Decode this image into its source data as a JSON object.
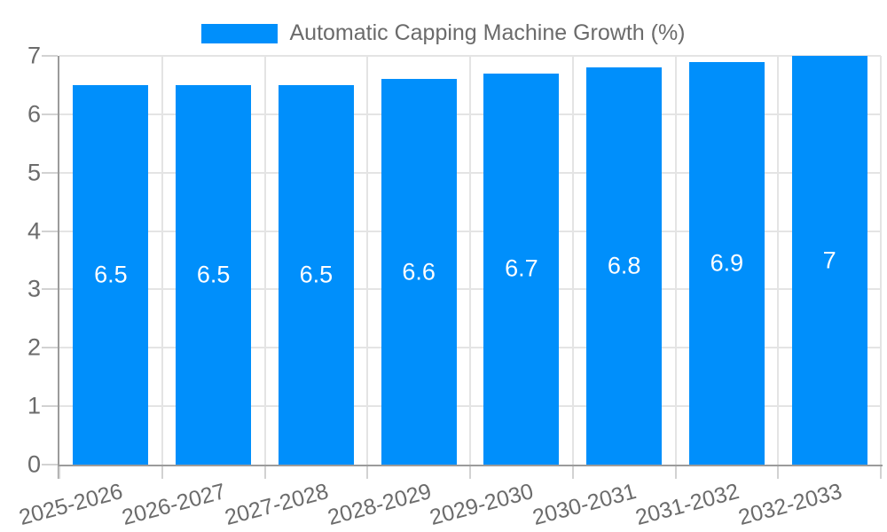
{
  "legend": {
    "label": "Automatic Capping Machine Growth (%)"
  },
  "chart_data": {
    "type": "bar",
    "title": "Automatic Capping Machine Growth (%)",
    "categories": [
      "2025-2026",
      "2026-2027",
      "2027-2028",
      "2028-2029",
      "2029-2030",
      "2030-2031",
      "2031-2032",
      "2032-2033"
    ],
    "series": [
      {
        "name": "Automatic Capping Machine Growth (%)",
        "values": [
          6.5,
          6.5,
          6.5,
          6.6,
          6.7,
          6.8,
          6.9,
          7
        ]
      }
    ],
    "value_labels": [
      "6.5",
      "6.5",
      "6.5",
      "6.6",
      "6.7",
      "6.8",
      "6.9",
      "7"
    ],
    "xlabel": "",
    "ylabel": "",
    "ylim": [
      0,
      7
    ],
    "y_ticks": [
      0,
      1,
      2,
      3,
      4,
      5,
      6,
      7
    ],
    "grid": true,
    "legend_position": "top",
    "x_tick_rotation_deg": -15,
    "colors": {
      "bar": "#008FFB",
      "axis_line": "#9b9b9b",
      "gridline": "#e4e4e4",
      "tick": "#d2d2d2",
      "label_text": "#6b6b6b",
      "value_label_text": "#ffffff",
      "background": "#ffffff"
    }
  }
}
